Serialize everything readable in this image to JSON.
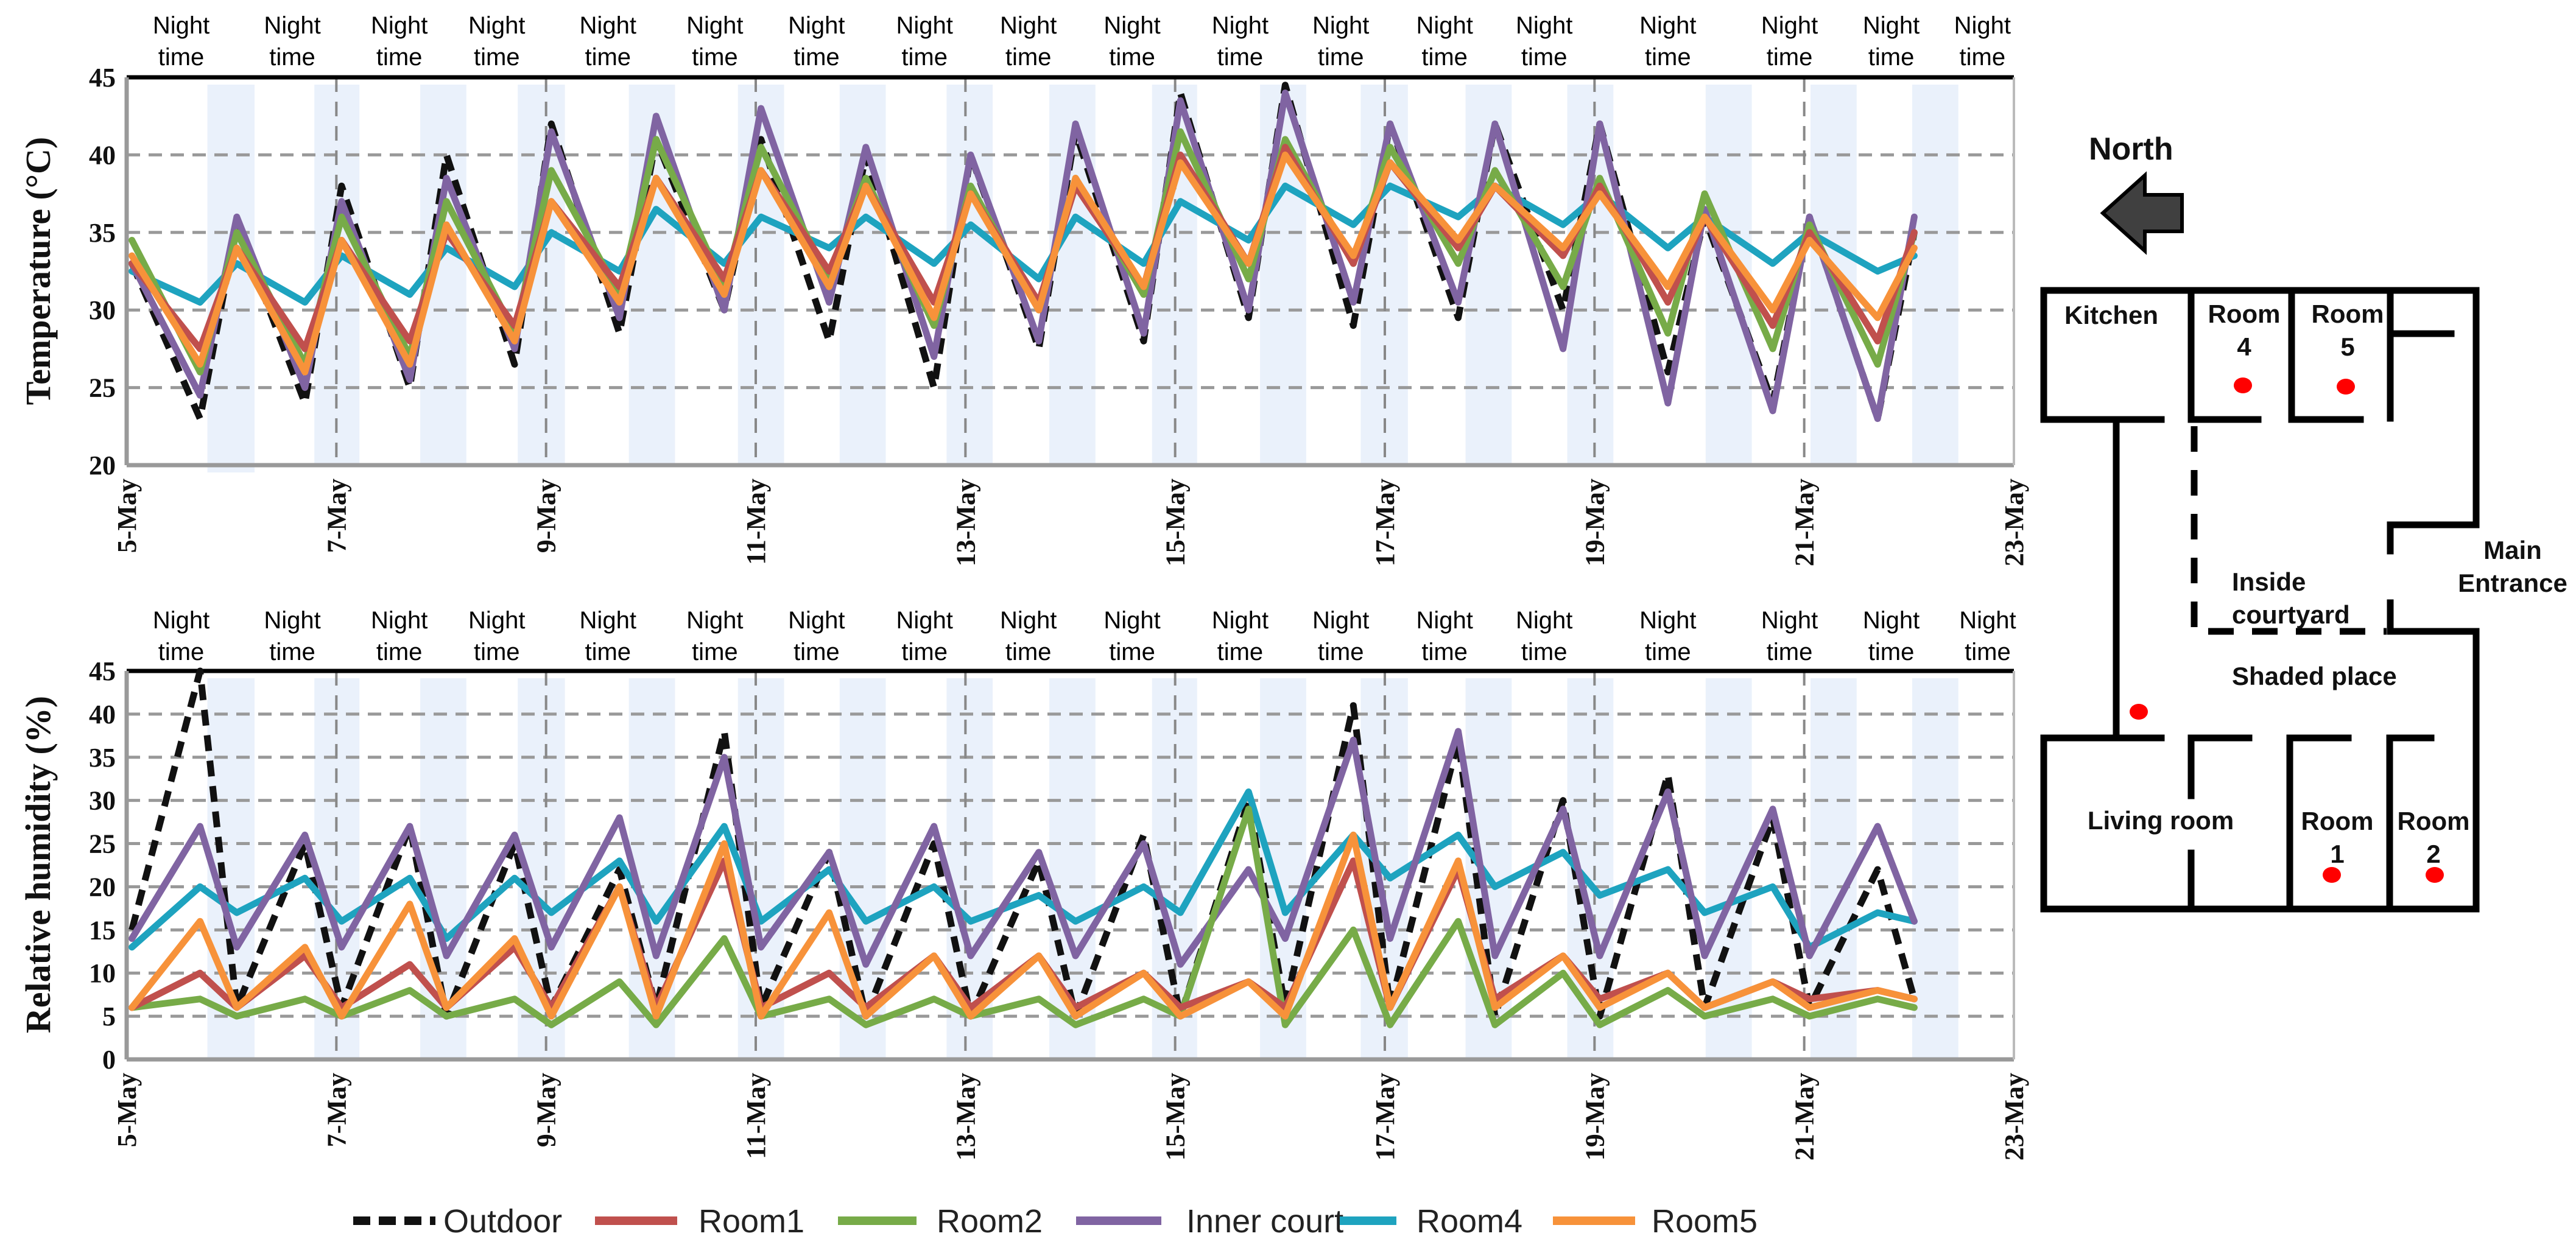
{
  "chart_data": [
    {
      "type": "line",
      "title": "",
      "ylabel": "Temperature  (°C)",
      "xlabel": "",
      "ylim": [
        20,
        45
      ],
      "yticks": [
        "20",
        "25",
        "30",
        "35",
        "40",
        "45"
      ],
      "xlim_days": [
        0,
        18
      ],
      "xtick_labels": [
        "5-May",
        "7-May",
        "9-May",
        "11-May",
        "13-May",
        "15-May",
        "17-May",
        "19-May",
        "21-May",
        "23-May"
      ],
      "grid": true,
      "night_label": "Night time",
      "night_label_days": [
        0.52,
        1.58,
        2.6,
        3.53,
        4.59,
        5.61,
        6.58,
        7.61,
        8.6,
        9.59,
        10.62,
        11.58,
        12.57,
        13.52,
        14.7,
        15.86,
        16.83,
        17.7
      ],
      "night_bands_days": [
        [
          0.77,
          1.22
        ],
        [
          1.79,
          2.22
        ],
        [
          2.8,
          3.24
        ],
        [
          3.73,
          4.18
        ],
        [
          4.79,
          5.23
        ],
        [
          5.83,
          6.27
        ],
        [
          6.8,
          7.24
        ],
        [
          7.82,
          8.26
        ],
        [
          8.8,
          9.24
        ],
        [
          9.78,
          10.21
        ],
        [
          10.81,
          11.25
        ],
        [
          11.77,
          12.22
        ],
        [
          12.77,
          13.21
        ],
        [
          13.74,
          14.18
        ],
        [
          15.06,
          15.5
        ],
        [
          16.06,
          16.5
        ],
        [
          17.03,
          17.47
        ]
      ],
      "x_days": [
        0.05,
        0.7,
        1.05,
        1.7,
        2.05,
        2.7,
        3.05,
        3.7,
        4.05,
        4.7,
        5.05,
        5.7,
        6.05,
        6.7,
        7.05,
        7.7,
        8.05,
        8.7,
        9.05,
        9.7,
        10.05,
        10.7,
        11.05,
        11.7,
        12.05,
        12.7,
        13.05,
        13.7,
        14.05,
        14.7,
        15.05,
        15.7,
        16.05,
        16.7,
        17.05
      ],
      "series": [
        {
          "name": "Outdoor",
          "values": [
            33,
            23,
            35.5,
            24,
            38,
            25,
            40,
            26.5,
            42,
            28.5,
            41,
            30,
            41,
            28,
            40,
            25,
            40,
            27.5,
            41.5,
            28,
            44,
            29.5,
            44.5,
            29,
            42,
            29.5,
            42,
            30,
            42,
            26,
            36,
            24,
            36,
            23,
            35
          ]
        },
        {
          "name": "Room4",
          "values": [
            32.5,
            30.5,
            33,
            30.5,
            33.5,
            31,
            34,
            31.5,
            35,
            32.5,
            36.5,
            33,
            36,
            34,
            36,
            33,
            35.5,
            32,
            36,
            33,
            37,
            34.5,
            38,
            35.5,
            38,
            36,
            38,
            35.5,
            37.5,
            34,
            36,
            33,
            35,
            32.5,
            33.5
          ]
        },
        {
          "name": "Inner court",
          "values": [
            33,
            24.5,
            36,
            25,
            37,
            25.5,
            38.5,
            27.5,
            41.5,
            29.5,
            42.5,
            30,
            43,
            30.5,
            40.5,
            27,
            40,
            28,
            42,
            28.5,
            43.5,
            30,
            44,
            30.5,
            42,
            30.5,
            42,
            27.5,
            42,
            24,
            36.5,
            23.5,
            36,
            23,
            36
          ]
        },
        {
          "name": "Room2",
          "values": [
            34.5,
            26,
            35,
            26.5,
            36,
            27,
            37,
            28.5,
            39,
            31,
            41,
            31.5,
            40.5,
            32,
            38.5,
            29,
            38,
            30,
            38.5,
            31,
            41.5,
            32,
            41,
            33,
            40.5,
            33,
            39,
            31.5,
            38.5,
            28.5,
            37.5,
            27.5,
            35.5,
            26.5,
            35
          ]
        },
        {
          "name": "Room1",
          "values": [
            33,
            27.5,
            34,
            27.5,
            34.5,
            28,
            35,
            29,
            37,
            31.5,
            38.5,
            32,
            39,
            32.5,
            38,
            30.5,
            37.5,
            30.5,
            38,
            31.5,
            40,
            33,
            40.5,
            33,
            39.5,
            34,
            38,
            33.5,
            38,
            30.5,
            36,
            29,
            35,
            28,
            35
          ]
        },
        {
          "name": "Room5",
          "values": [
            33.5,
            26.5,
            34,
            26,
            34.5,
            26.5,
            35.5,
            28,
            37,
            30.5,
            38.5,
            31,
            39,
            31.5,
            38,
            29.5,
            37.5,
            30,
            38.5,
            31.5,
            39.5,
            33,
            40,
            33.5,
            39.5,
            34.5,
            38,
            34,
            37.5,
            31.5,
            36,
            30,
            34.5,
            29.5,
            34
          ]
        }
      ]
    },
    {
      "type": "line",
      "title": "",
      "ylabel": "Relative humidity (%)",
      "xlabel": "",
      "ylim": [
        0,
        45
      ],
      "yticks": [
        "0",
        "5",
        "10",
        "15",
        "20",
        "25",
        "30",
        "35",
        "40",
        "45"
      ],
      "xlim_days": [
        0,
        18
      ],
      "xtick_labels": [
        "5-May",
        "7-May",
        "9-May",
        "11-May",
        "13-May",
        "15-May",
        "17-May",
        "19-May",
        "21-May",
        "23-May"
      ],
      "grid": true,
      "night_label": "Night time",
      "night_label_days": [
        0.52,
        1.58,
        2.6,
        3.53,
        4.59,
        5.61,
        6.58,
        7.61,
        8.6,
        9.59,
        10.62,
        11.58,
        12.57,
        13.52,
        14.7,
        15.86,
        16.83,
        17.75
      ],
      "night_bands_days": [
        [
          0.77,
          1.22
        ],
        [
          1.79,
          2.22
        ],
        [
          2.8,
          3.24
        ],
        [
          3.73,
          4.18
        ],
        [
          4.79,
          5.23
        ],
        [
          5.83,
          6.27
        ],
        [
          6.8,
          7.24
        ],
        [
          7.82,
          8.26
        ],
        [
          8.8,
          9.24
        ],
        [
          9.78,
          10.21
        ],
        [
          10.81,
          11.25
        ],
        [
          11.77,
          12.22
        ],
        [
          12.77,
          13.21
        ],
        [
          13.74,
          14.18
        ],
        [
          15.06,
          15.5
        ],
        [
          16.06,
          16.5
        ],
        [
          17.03,
          17.47
        ]
      ],
      "x_days": [
        0.05,
        0.7,
        1.05,
        1.7,
        2.05,
        2.7,
        3.05,
        3.7,
        4.05,
        4.7,
        5.05,
        5.7,
        6.05,
        6.7,
        7.05,
        7.7,
        8.05,
        8.7,
        9.05,
        9.7,
        10.05,
        10.7,
        11.05,
        11.7,
        12.05,
        12.7,
        13.05,
        13.7,
        14.05,
        14.7,
        15.05,
        15.7,
        16.05,
        16.7,
        17.05
      ],
      "series": [
        {
          "name": "Outdoor",
          "values": [
            15,
            45,
            6,
            25,
            6,
            27,
            5,
            25,
            6,
            22,
            6,
            38,
            6,
            24,
            5,
            25,
            5,
            23,
            5,
            26,
            5,
            30,
            6,
            41,
            6,
            37,
            5,
            30,
            5,
            33,
            6,
            28,
            6,
            22,
            7
          ]
        },
        {
          "name": "Room4",
          "values": [
            13,
            20,
            17,
            21,
            16,
            21,
            14,
            21,
            17,
            23,
            16,
            27,
            16,
            22,
            16,
            20,
            16,
            19,
            16,
            20,
            17,
            31,
            17,
            26,
            21,
            26,
            20,
            24,
            19,
            22,
            17,
            20,
            13,
            17,
            16
          ]
        },
        {
          "name": "Inner court",
          "values": [
            14,
            27,
            13,
            26,
            13,
            27,
            12,
            26,
            13,
            28,
            12,
            35,
            13,
            24,
            11,
            27,
            12,
            24,
            12,
            25,
            11,
            22,
            14,
            37,
            14,
            38,
            12,
            29,
            12,
            31,
            12,
            29,
            12,
            27,
            16
          ]
        },
        {
          "name": "Room2",
          "values": [
            6,
            7,
            5,
            7,
            5,
            8,
            5,
            7,
            4,
            9,
            4,
            14,
            5,
            7,
            4,
            7,
            5,
            7,
            4,
            7,
            5,
            29,
            4,
            15,
            4,
            16,
            4,
            10,
            4,
            8,
            5,
            7,
            5,
            7,
            6
          ]
        },
        {
          "name": "Room1",
          "values": [
            6,
            10,
            6,
            12,
            6,
            11,
            6,
            13,
            6,
            20,
            6,
            23,
            6,
            10,
            6,
            12,
            6,
            12,
            6,
            10,
            6,
            9,
            6,
            23,
            6,
            22,
            7,
            12,
            7,
            10,
            6,
            9,
            7,
            8,
            7
          ]
        },
        {
          "name": "Room5",
          "values": [
            6,
            16,
            6,
            13,
            5,
            18,
            6,
            14,
            5,
            20,
            5,
            25,
            5,
            17,
            5,
            12,
            5,
            12,
            5,
            10,
            5,
            9,
            5,
            26,
            6,
            23,
            6,
            12,
            6,
            10,
            6,
            9,
            6,
            8,
            7
          ]
        }
      ]
    }
  ],
  "series_colors": {
    "Outdoor": "#111111",
    "Room1": "#c0504d",
    "Room2": "#77ab48",
    "Inner court": "#8064a2",
    "Room4": "#1ea3bf",
    "Room5": "#f7923a"
  },
  "legend": [
    {
      "name": "Outdoor",
      "label": "Outdoor"
    },
    {
      "name": "Room1",
      "label": "Room1"
    },
    {
      "name": "Room2",
      "label": "Room2"
    },
    {
      "name": "Inner court",
      "label": "Inner court"
    },
    {
      "name": "Room4",
      "label": "Room4"
    },
    {
      "name": "Room5",
      "label": "Room5"
    }
  ],
  "floor_plan": {
    "north": "North",
    "kitchen": "Kitchen",
    "room4": [
      "Room",
      "4"
    ],
    "room5": [
      "Room",
      "5"
    ],
    "main_entrance": [
      "Main",
      "Entrance"
    ],
    "inside_courtyard": [
      "Inside",
      "courtyard"
    ],
    "shaded_place": "Shaded place",
    "living_room": "Living room",
    "room1": [
      "Room",
      "1"
    ],
    "room2": [
      "Room",
      "2"
    ],
    "sensor_color": "#ff0000"
  }
}
